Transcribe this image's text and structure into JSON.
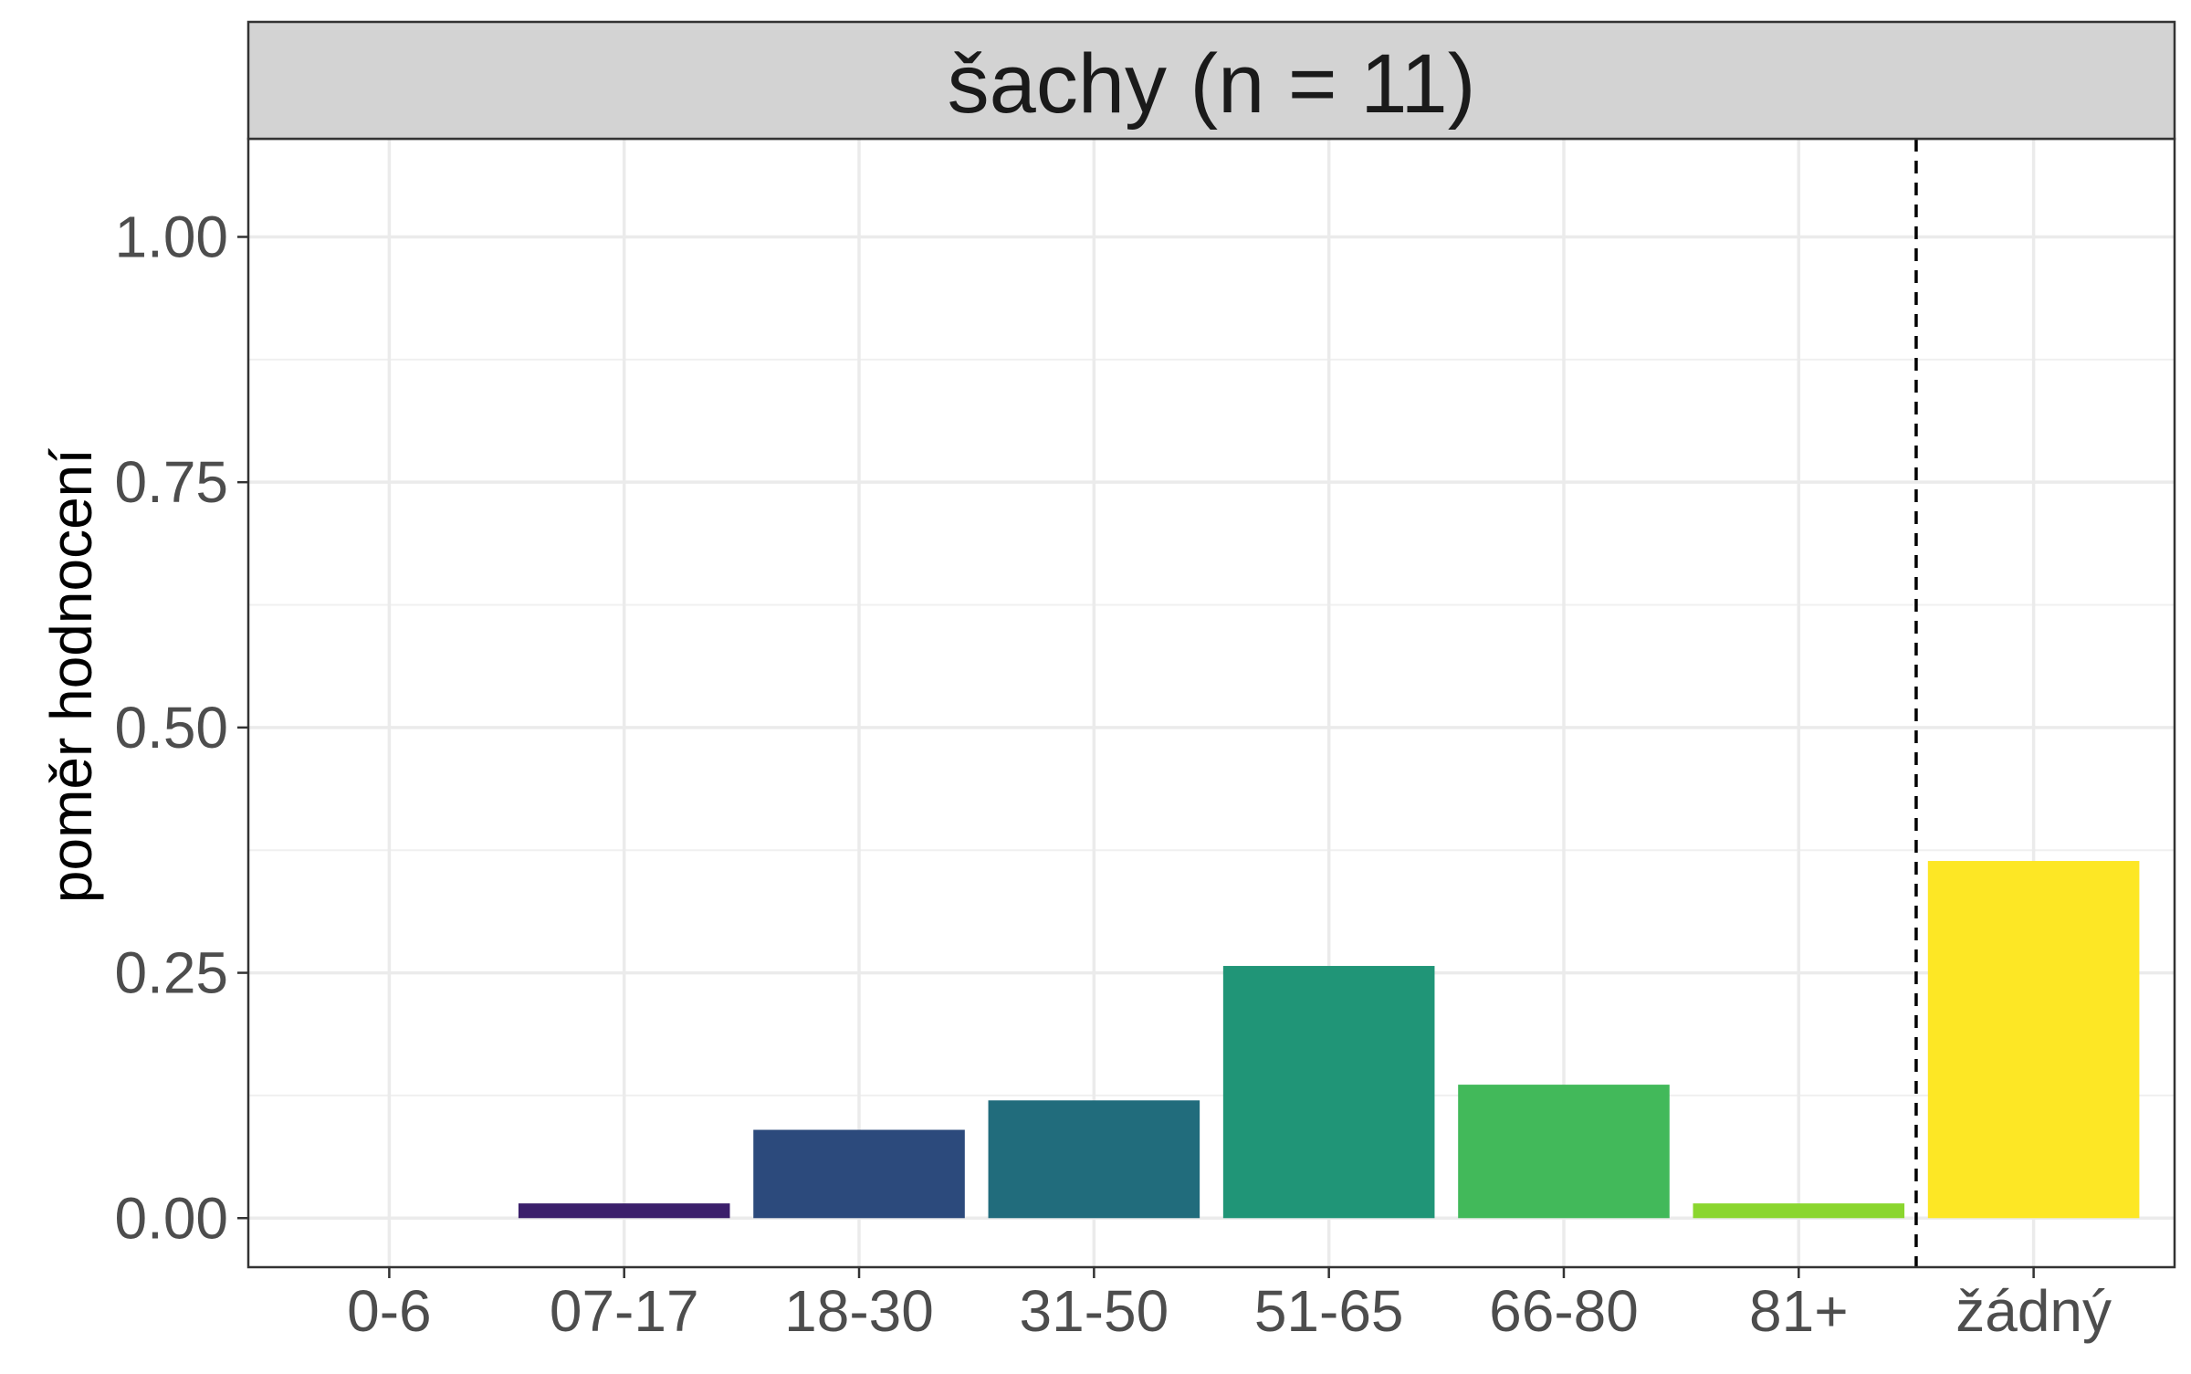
{
  "chart_data": {
    "type": "bar",
    "title": "šachy (n = 11)",
    "xlabel": "",
    "ylabel": "poměr hodnocení",
    "categories": [
      "0-6",
      "07-17",
      "18-30",
      "31-50",
      "51-65",
      "66-80",
      "81+",
      "žádný"
    ],
    "values": [
      0.0,
      0.015,
      0.09,
      0.12,
      0.257,
      0.136,
      0.015,
      0.364
    ],
    "colors": [
      "#440154",
      "#3b1f6b",
      "#2c4a7c",
      "#216c7c",
      "#209577",
      "#42b95a",
      "#8ad62e",
      "#fde725"
    ],
    "ylim": [
      -0.05,
      1.1
    ],
    "yticks": [
      0.0,
      0.25,
      0.5,
      0.75,
      1.0
    ],
    "ytick_labels": [
      "0.00",
      "0.25",
      "0.50",
      "0.75",
      "1.00"
    ],
    "reference_line": {
      "between": [
        "81+",
        "žádný"
      ],
      "style": "dashed"
    },
    "grid": true,
    "legend": "none",
    "strip_color": "#d3d3d3"
  }
}
